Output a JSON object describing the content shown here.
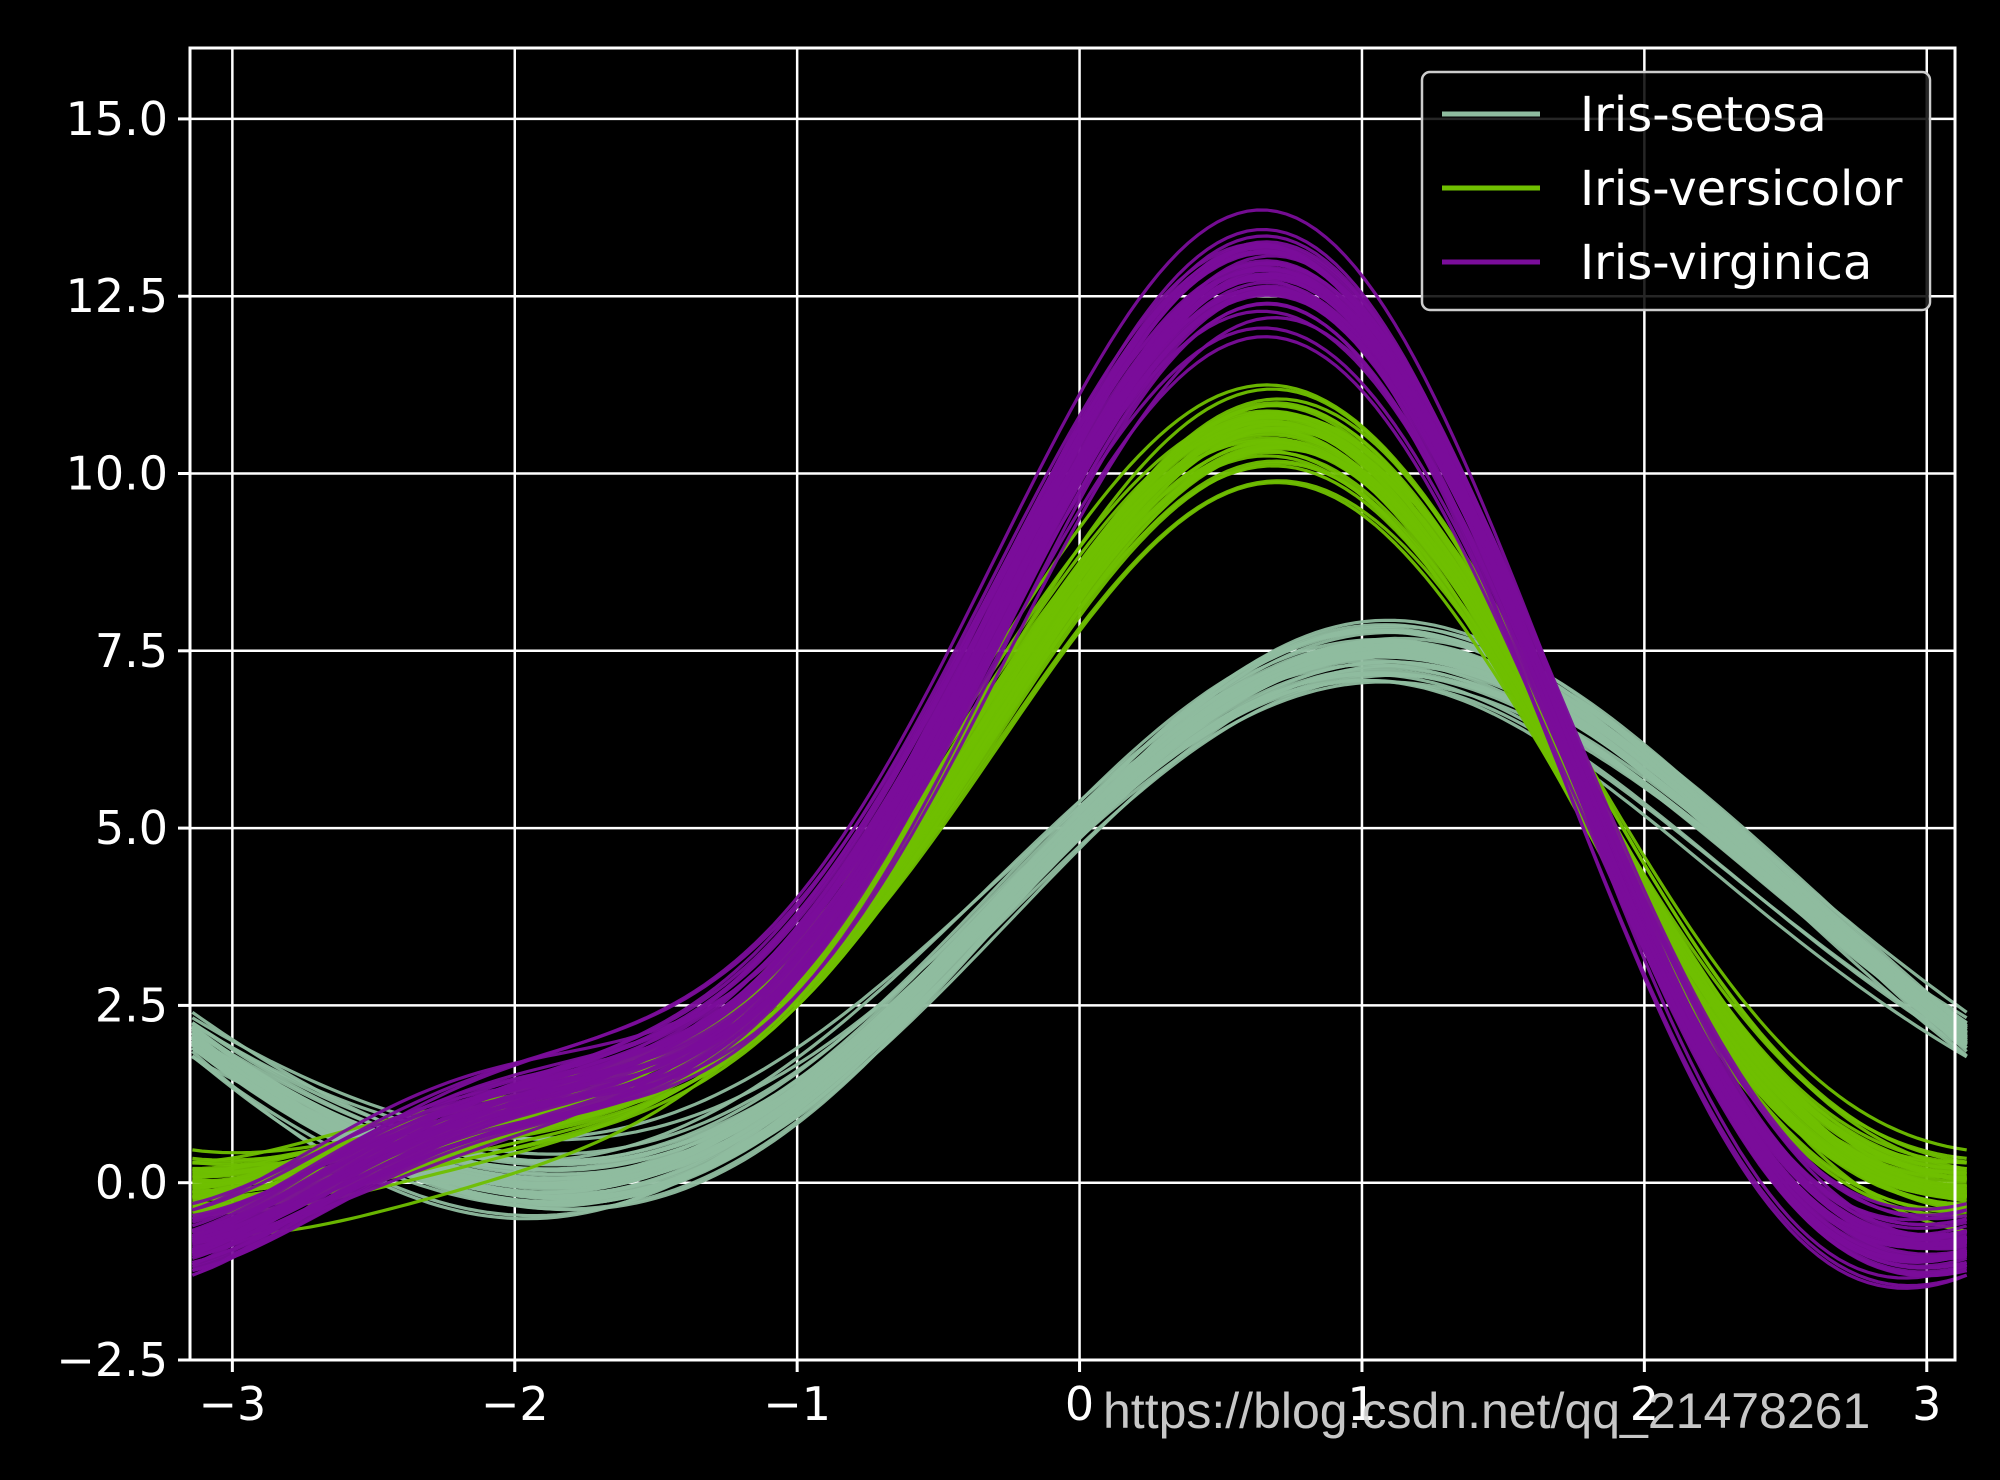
{
  "chart_data": {
    "type": "line",
    "title": "",
    "xlabel": "",
    "ylabel": "",
    "xlim": [
      -3.15,
      3.1
    ],
    "ylim": [
      -2.5,
      16.0
    ],
    "grid": true,
    "legend_placement": "top-right",
    "x_ticks": [
      {
        "value": -3,
        "label": "−3"
      },
      {
        "value": -2,
        "label": "−2"
      },
      {
        "value": -1,
        "label": "−1"
      },
      {
        "value": 0,
        "label": "0"
      },
      {
        "value": 1,
        "label": "1"
      },
      {
        "value": 2,
        "label": "2"
      },
      {
        "value": 3,
        "label": "3"
      }
    ],
    "y_ticks": [
      {
        "value": -2.5,
        "label": "−2.5"
      },
      {
        "value": 0,
        "label": "0.0"
      },
      {
        "value": 2.5,
        "label": "2.5"
      },
      {
        "value": 5,
        "label": "5.0"
      },
      {
        "value": 7.5,
        "label": "7.5"
      },
      {
        "value": 10,
        "label": "10.0"
      },
      {
        "value": 12.5,
        "label": "12.5"
      },
      {
        "value": 15,
        "label": "15.0"
      }
    ],
    "series": [
      {
        "name": "Iris-setosa",
        "color": "#8fbc9f",
        "representative_curve": {
          "x": [
            -3.1,
            -2.5,
            -2.0,
            -1.5,
            -1.0,
            -0.5,
            0.0,
            0.5,
            1.0,
            1.5,
            2.0,
            2.5,
            3.0
          ],
          "y": [
            2.3,
            0.4,
            -0.4,
            -0.3,
            0.9,
            3.1,
            5.4,
            7.0,
            7.5,
            6.6,
            5.0,
            3.4,
            2.2
          ]
        }
      },
      {
        "name": "Iris-versicolor",
        "color": "#6fbf00",
        "representative_curve": {
          "x": [
            -3.1,
            -2.5,
            -2.0,
            -1.5,
            -1.0,
            -0.5,
            0.0,
            0.5,
            1.0,
            1.5,
            2.0,
            2.5,
            3.0
          ],
          "y": [
            0.2,
            0.3,
            0.5,
            0.9,
            2.2,
            5.2,
            8.3,
            10.0,
            9.9,
            7.0,
            2.8,
            0.3,
            0.1
          ]
        }
      },
      {
        "name": "Iris-virginica",
        "color": "#7a0d9a",
        "representative_curve": {
          "x": [
            -3.1,
            -2.5,
            -2.0,
            -1.5,
            -1.0,
            -0.5,
            0.0,
            0.5,
            1.0,
            1.5,
            2.0,
            2.5,
            3.0
          ],
          "y": [
            -0.8,
            0.3,
            1.3,
            2.0,
            3.4,
            6.7,
            10.5,
            13.0,
            12.3,
            8.3,
            2.4,
            -0.9,
            -1.2
          ]
        }
      }
    ]
  },
  "watermark_text": "https://blog.csdn.net/qq_21478261"
}
